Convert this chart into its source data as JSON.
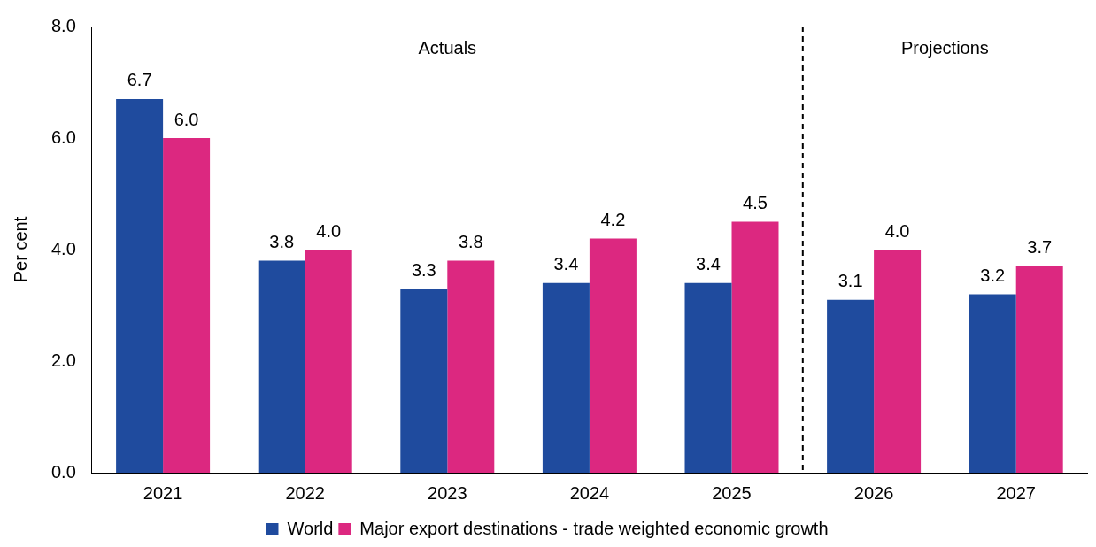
{
  "chart_data": {
    "type": "bar",
    "ylabel": "Per cent",
    "categories": [
      "2021",
      "2022",
      "2023",
      "2024",
      "2025",
      "2026",
      "2027"
    ],
    "series": [
      {
        "name": "World",
        "color": "#1f4b9e",
        "values": [
          6.7,
          3.8,
          3.3,
          3.4,
          3.4,
          3.1,
          3.2
        ],
        "value_labels": [
          "6.7",
          "3.8",
          "3.3",
          "3.4",
          "3.4",
          "3.1",
          "3.2"
        ]
      },
      {
        "name": "Major export destinations - trade weighted economic growth",
        "color": "#dc2880",
        "values": [
          6.0,
          4.0,
          3.8,
          4.2,
          4.5,
          4.0,
          3.7
        ],
        "value_labels": [
          "6.0",
          "4.0",
          "3.8",
          "4.2",
          "4.5",
          "4.0",
          "3.7"
        ]
      }
    ],
    "ylim": [
      0,
      8
    ],
    "yticks": [
      {
        "value": 0,
        "label": "0.0"
      },
      {
        "value": 2,
        "label": "2.0"
      },
      {
        "value": 4,
        "label": "4.0"
      },
      {
        "value": 6,
        "label": "6.0"
      },
      {
        "value": 8,
        "label": "8.0"
      }
    ],
    "annotations": [
      "Actuals",
      "Projections"
    ],
    "grid": false,
    "legend": "bottom"
  }
}
